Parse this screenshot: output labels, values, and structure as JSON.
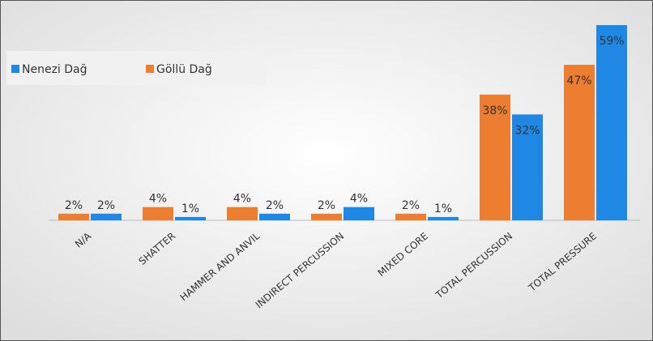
{
  "chart_data": {
    "type": "bar",
    "categories": [
      "N/A",
      "SHATTER",
      "HAMMER AND ANVIL",
      "INDIRECT PERCUSSION",
      "MIXED CORE",
      "TOTAL PERCUSSION",
      "TOTAL PRESSURE"
    ],
    "series": [
      {
        "name": "Göllü Dağ",
        "color": "#ed7d31",
        "values": [
          2,
          4,
          4,
          2,
          2,
          38,
          47
        ],
        "value_labels": [
          "2%",
          "4%",
          "4%",
          "2%",
          "2%",
          "38%",
          "47%"
        ]
      },
      {
        "name": "Nenezi Dağ",
        "color": "#1f88e5",
        "values": [
          2,
          1,
          2,
          4,
          1,
          32,
          59
        ],
        "value_labels": [
          "2%",
          "1%",
          "2%",
          "4%",
          "1%",
          "32%",
          "59%"
        ]
      }
    ],
    "legend_order": [
      "Nenezi Dağ",
      "Göllü Dağ"
    ]
  }
}
